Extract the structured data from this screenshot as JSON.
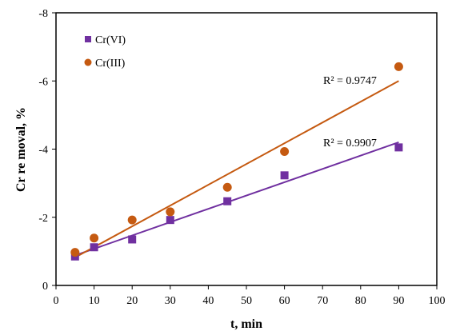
{
  "chart_data": {
    "type": "scatter",
    "xlabel": "t, min",
    "ylabel": "Cr re moval, %",
    "xlim": [
      0,
      100
    ],
    "ylim": [
      0,
      -8
    ],
    "x_ticks": [
      "0",
      "10",
      "20",
      "30",
      "40",
      "50",
      "60",
      "70",
      "80",
      "90",
      "100"
    ],
    "y_ticks": [
      "0",
      "-2",
      "-4",
      "-6",
      "-8"
    ],
    "grid": false,
    "legend_position": "top-left",
    "series": [
      {
        "name": "Cr(VI)",
        "marker": "square",
        "color": "#7030A0",
        "x": [
          5,
          10,
          20,
          30,
          45,
          60,
          90
        ],
        "y": [
          -0.85,
          -1.12,
          -1.35,
          -1.92,
          -2.47,
          -3.23,
          -4.05
        ],
        "trendline": {
          "x": [
            5,
            90
          ],
          "y": [
            -0.88,
            -4.2
          ]
        },
        "r2_label": "R² = 0.9907"
      },
      {
        "name": "Cr(III)",
        "marker": "circle",
        "color": "#C55A11",
        "x": [
          5,
          10,
          20,
          30,
          45,
          60,
          90
        ],
        "y": [
          -0.97,
          -1.39,
          -1.92,
          -2.16,
          -2.88,
          -3.93,
          -6.42
        ],
        "trendline": {
          "x": [
            5,
            90
          ],
          "y": [
            -0.82,
            -6.0
          ]
        },
        "r2_label": "R² = 0.9747"
      }
    ]
  }
}
